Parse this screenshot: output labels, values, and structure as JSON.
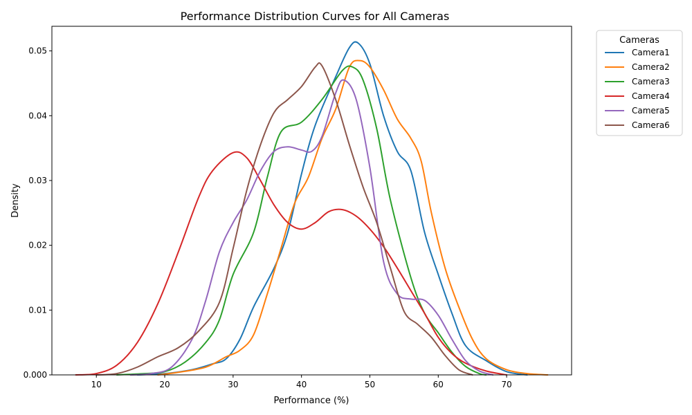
{
  "chart_data": {
    "type": "line",
    "title": "Performance Distribution Curves for All Cameras",
    "xlabel": "Performance (%)",
    "ylabel": "Density",
    "xlim": [
      3.5,
      79.5
    ],
    "ylim": [
      0,
      0.0538
    ],
    "xticks": [
      10,
      20,
      30,
      40,
      50,
      60,
      70
    ],
    "xtick_labels": [
      "10",
      "20",
      "30",
      "40",
      "50",
      "60",
      "70"
    ],
    "yticks": [
      0,
      0.01,
      0.02,
      0.03,
      0.04,
      0.05
    ],
    "ytick_labels": [
      "0.000",
      "0.01",
      "0.02",
      "0.03",
      "0.04",
      "0.05"
    ],
    "grid": false,
    "legend": {
      "title": "Cameras",
      "placement": "outside-top-right"
    },
    "colors": [
      "#1f77b4",
      "#ff7f0e",
      "#2ca02c",
      "#d62728",
      "#9467bd",
      "#8c564b"
    ],
    "series": [
      {
        "name": "Camera1",
        "points": [
          [
            16,
            0
          ],
          [
            20,
            0.0002
          ],
          [
            24,
            0.0008
          ],
          [
            27,
            0.0017
          ],
          [
            29,
            0.0025
          ],
          [
            31,
            0.0055
          ],
          [
            33,
            0.0105
          ],
          [
            36,
            0.0165
          ],
          [
            38,
            0.022
          ],
          [
            40,
            0.031
          ],
          [
            42,
            0.0385
          ],
          [
            45,
            0.046
          ],
          [
            47,
            0.0505
          ],
          [
            48.3,
            0.0512
          ],
          [
            50,
            0.048
          ],
          [
            52,
            0.04
          ],
          [
            54,
            0.0345
          ],
          [
            56,
            0.0315
          ],
          [
            58,
            0.022
          ],
          [
            60,
            0.0155
          ],
          [
            62,
            0.0095
          ],
          [
            64,
            0.0045
          ],
          [
            67,
            0.0022
          ],
          [
            70,
            0.0005
          ],
          [
            73,
            0
          ]
        ]
      },
      {
        "name": "Camera2",
        "points": [
          [
            19,
            0
          ],
          [
            22,
            0.0004
          ],
          [
            26,
            0.0012
          ],
          [
            29,
            0.0028
          ],
          [
            31,
            0.0038
          ],
          [
            33,
            0.0062
          ],
          [
            35,
            0.0125
          ],
          [
            37,
            0.0195
          ],
          [
            39,
            0.0265
          ],
          [
            41,
            0.0305
          ],
          [
            43,
            0.0365
          ],
          [
            45,
            0.041
          ],
          [
            47,
            0.0475
          ],
          [
            48.5,
            0.0485
          ],
          [
            50,
            0.0475
          ],
          [
            52,
            0.044
          ],
          [
            54,
            0.0395
          ],
          [
            56,
            0.0365
          ],
          [
            57.5,
            0.033
          ],
          [
            59,
            0.025
          ],
          [
            61,
            0.0165
          ],
          [
            63,
            0.0105
          ],
          [
            65,
            0.0055
          ],
          [
            67,
            0.0025
          ],
          [
            70,
            0.0008
          ],
          [
            73,
            0.0002
          ],
          [
            76,
            0
          ]
        ]
      },
      {
        "name": "Camera3",
        "points": [
          [
            13,
            0
          ],
          [
            17,
            0.0002
          ],
          [
            20,
            0.0005
          ],
          [
            23,
            0.002
          ],
          [
            26,
            0.005
          ],
          [
            28,
            0.0085
          ],
          [
            30,
            0.0155
          ],
          [
            33,
            0.022
          ],
          [
            35,
            0.0305
          ],
          [
            37,
            0.0375
          ],
          [
            40,
            0.039
          ],
          [
            43,
            0.0425
          ],
          [
            46,
            0.047
          ],
          [
            47.5,
            0.0475
          ],
          [
            49,
            0.0455
          ],
          [
            51,
            0.038
          ],
          [
            53,
            0.027
          ],
          [
            56,
            0.015
          ],
          [
            58,
            0.0095
          ],
          [
            60,
            0.0065
          ],
          [
            62,
            0.0035
          ],
          [
            64,
            0.0013
          ],
          [
            66,
            0.0002
          ],
          [
            67,
            0
          ]
        ]
      },
      {
        "name": "Camera4",
        "points": [
          [
            7,
            0
          ],
          [
            10,
            0.0002
          ],
          [
            13,
            0.0015
          ],
          [
            16,
            0.005
          ],
          [
            19,
            0.011
          ],
          [
            22,
            0.019
          ],
          [
            25,
            0.0275
          ],
          [
            27,
            0.0315
          ],
          [
            30,
            0.0343
          ],
          [
            32,
            0.0335
          ],
          [
            34,
            0.03
          ],
          [
            36,
            0.0262
          ],
          [
            38,
            0.0235
          ],
          [
            40,
            0.0225
          ],
          [
            42,
            0.0235
          ],
          [
            44,
            0.0252
          ],
          [
            46,
            0.0255
          ],
          [
            48,
            0.0245
          ],
          [
            50,
            0.0225
          ],
          [
            52,
            0.0198
          ],
          [
            54,
            0.0165
          ],
          [
            56,
            0.013
          ],
          [
            58,
            0.0095
          ],
          [
            60,
            0.0058
          ],
          [
            62,
            0.0033
          ],
          [
            64,
            0.0018
          ],
          [
            67,
            0.0006
          ],
          [
            70,
            0
          ]
        ]
      },
      {
        "name": "Camera5",
        "points": [
          [
            15,
            0
          ],
          [
            18,
            0.0002
          ],
          [
            21,
            0.0012
          ],
          [
            24,
            0.0055
          ],
          [
            26,
            0.0115
          ],
          [
            28,
            0.019
          ],
          [
            30,
            0.0235
          ],
          [
            32,
            0.027
          ],
          [
            34,
            0.0315
          ],
          [
            36,
            0.0345
          ],
          [
            38,
            0.0352
          ],
          [
            40,
            0.0347
          ],
          [
            41.5,
            0.0345
          ],
          [
            43,
            0.0368
          ],
          [
            45,
            0.0435
          ],
          [
            46.2,
            0.0455
          ],
          [
            48,
            0.0425
          ],
          [
            50,
            0.032
          ],
          [
            52,
            0.0175
          ],
          [
            54,
            0.0125
          ],
          [
            56,
            0.0117
          ],
          [
            58,
            0.0115
          ],
          [
            60,
            0.0092
          ],
          [
            62,
            0.0055
          ],
          [
            64,
            0.0022
          ],
          [
            66,
            0.0006
          ],
          [
            68,
            0
          ]
        ]
      },
      {
        "name": "Camera6",
        "points": [
          [
            10,
            0
          ],
          [
            13,
            0.0002
          ],
          [
            16,
            0.0012
          ],
          [
            19,
            0.0028
          ],
          [
            22,
            0.0042
          ],
          [
            25,
            0.0068
          ],
          [
            28,
            0.0112
          ],
          [
            30,
            0.0195
          ],
          [
            32,
            0.0285
          ],
          [
            34,
            0.0355
          ],
          [
            36,
            0.0405
          ],
          [
            38,
            0.0425
          ],
          [
            40,
            0.0445
          ],
          [
            42,
            0.0475
          ],
          [
            43,
            0.0477
          ],
          [
            45,
            0.0425
          ],
          [
            47,
            0.0355
          ],
          [
            49,
            0.029
          ],
          [
            51,
            0.0235
          ],
          [
            53,
            0.0165
          ],
          [
            55,
            0.0098
          ],
          [
            57,
            0.0078
          ],
          [
            59,
            0.0058
          ],
          [
            61,
            0.003
          ],
          [
            63,
            0.0008
          ],
          [
            65,
            0
          ]
        ]
      }
    ]
  }
}
